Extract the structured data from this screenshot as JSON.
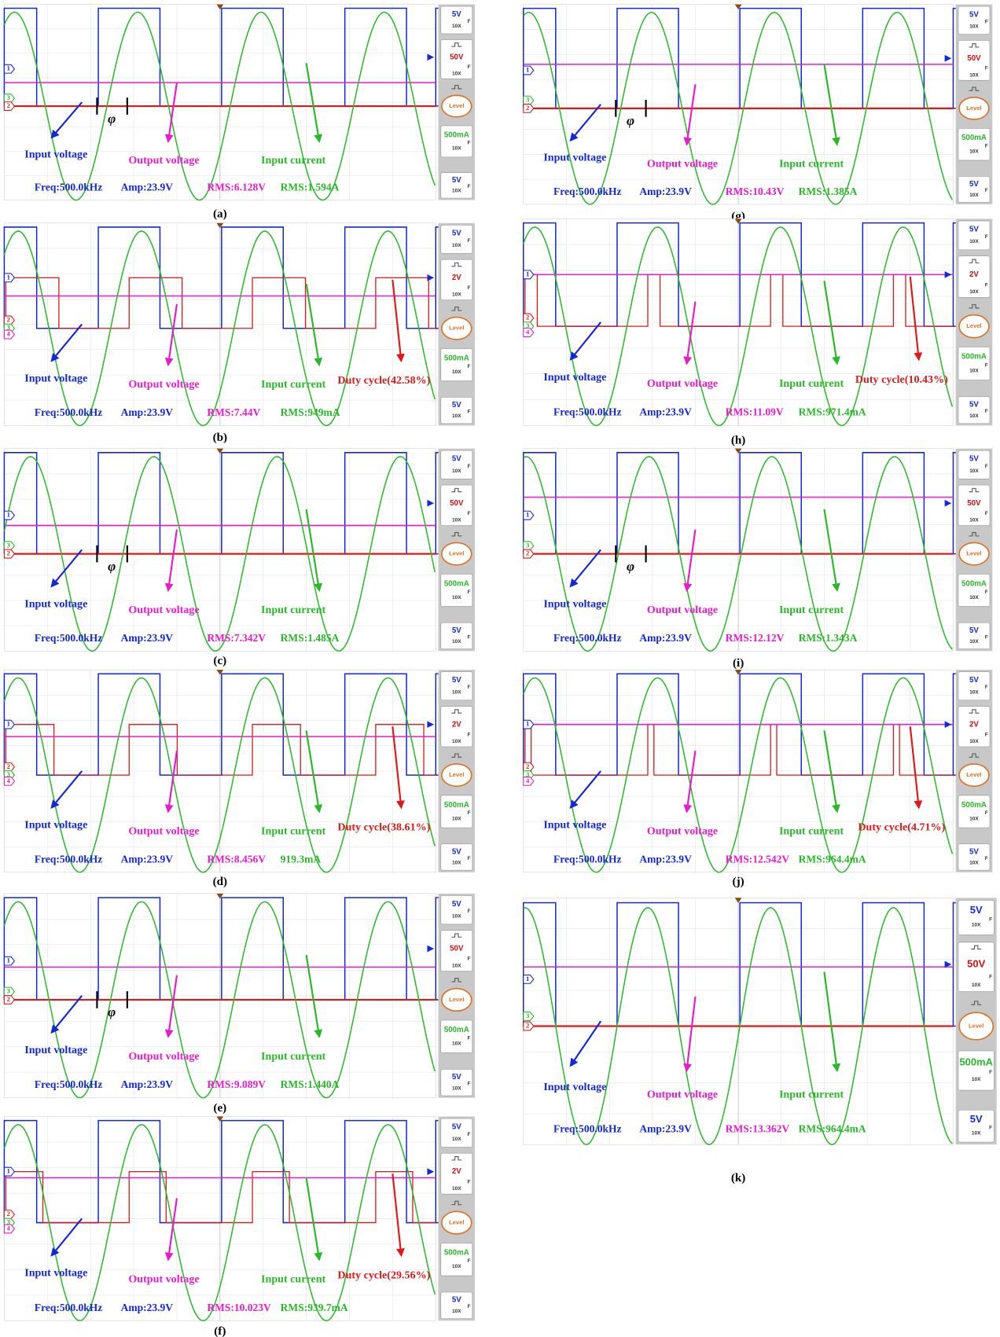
{
  "panels": [
    {
      "label": "(a)",
      "scales": [
        "5V",
        "50V",
        "500mA",
        "5V"
      ],
      "probe": "10X",
      "coupling": "F",
      "level": "Level",
      "markers": [
        "1",
        "3",
        "2"
      ],
      "phase": "φ",
      "annotations": [
        "Input voltage",
        "Output voltage",
        "Input current"
      ],
      "measurements": [
        "Freq:500.0kHz",
        "Amp:23.9V",
        "RMS:6.128V",
        "RMS:1.594A"
      ]
    },
    {
      "label": "(b)",
      "scales": [
        "5V",
        "2V",
        "500mA",
        "5V"
      ],
      "probe": "10X",
      "coupling": "F",
      "level": "Level",
      "markers": [
        "1",
        "2",
        "3",
        "4"
      ],
      "annotations": [
        "Input voltage",
        "Output voltage",
        "Input current",
        "Duty cycle(42.58%)"
      ],
      "measurements": [
        "Freq:500.0kHz",
        "Amp:23.9V",
        "RMS:7.44V",
        "RMS:949mA"
      ]
    },
    {
      "label": "(c)",
      "scales": [
        "5V",
        "50V",
        "500mA",
        "5V"
      ],
      "probe": "10X",
      "coupling": "F",
      "level": "Level",
      "markers": [
        "1",
        "3",
        "2"
      ],
      "phase": "φ",
      "annotations": [
        "Input voltage",
        "Output voltage",
        "Input current"
      ],
      "measurements": [
        "Freq:500.0kHz",
        "Amp:23.9V",
        "RMS:7.342V",
        "RMS:1.485A"
      ]
    },
    {
      "label": "(d)",
      "scales": [
        "5V",
        "2V",
        "500mA",
        "5V"
      ],
      "probe": "10X",
      "coupling": "F",
      "level": "Level",
      "markers": [
        "1",
        "2",
        "3",
        "4"
      ],
      "annotations": [
        "Input voltage",
        "Output voltage",
        "Input current",
        "Duty cycle(38.61%)"
      ],
      "measurements": [
        "Freq:500.0kHz",
        "Amp:23.9V",
        "RMS:8.456V",
        "919.3mA"
      ]
    },
    {
      "label": "(e)",
      "scales": [
        "5V",
        "50V",
        "500mA",
        "5V"
      ],
      "probe": "10X",
      "coupling": "F",
      "level": "Level",
      "markers": [
        "1",
        "3",
        "2"
      ],
      "phase": "φ",
      "annotations": [
        "Input voltage",
        "Output voltage",
        "Input current"
      ],
      "measurements": [
        "Freq:500.0kHz",
        "Amp:23.9V",
        "RMS:9.089V",
        "RMS:1.440A"
      ]
    },
    {
      "label": "(f)",
      "scales": [
        "5V",
        "2V",
        "500mA",
        "5V"
      ],
      "probe": "10X",
      "coupling": "F",
      "level": "Level",
      "markers": [
        "1",
        "2",
        "3",
        "4"
      ],
      "annotations": [
        "Input voltage",
        "Output voltage",
        "Input current",
        "Duty cycle(29.56%)"
      ],
      "measurements": [
        "Freq:500.0kHz",
        "Amp:23.9V",
        "RMS:10.023V",
        "RMS:939.7mA"
      ]
    },
    {
      "label": "(g)",
      "scales": [
        "5V",
        "50V",
        "500mA",
        "5V"
      ],
      "probe": "10X",
      "coupling": "F",
      "level": "Level",
      "markers": [
        "1",
        "3",
        "2"
      ],
      "phase": "φ",
      "annotations": [
        "Input voltage",
        "Output voltage",
        "Input current"
      ],
      "measurements": [
        "Freq:500.0kHz",
        "Amp:23.9V",
        "RMS:10.43V",
        "RMS:1.385A"
      ]
    },
    {
      "label": "(h)",
      "scales": [
        "5V",
        "2V",
        "500mA",
        "5V"
      ],
      "probe": "10X",
      "coupling": "F",
      "level": "Level",
      "markers": [
        "1",
        "2",
        "3",
        "4"
      ],
      "annotations": [
        "Input voltage",
        "Output voltage",
        "Input current",
        "Duty cycle(10.43%)"
      ],
      "measurements": [
        "Freq:500.0kHz",
        "Amp:23.9V",
        "RMS:11.09V",
        "RMS:971.4mA"
      ]
    },
    {
      "label": "(i)",
      "scales": [
        "5V",
        "50V",
        "500mA",
        "5V"
      ],
      "probe": "10X",
      "coupling": "F",
      "level": "Level",
      "markers": [
        "1",
        "3",
        "2"
      ],
      "phase": "φ",
      "annotations": [
        "Input voltage",
        "Output voltage",
        "Input current"
      ],
      "measurements": [
        "Freq:500.0kHz",
        "Amp:23.9V",
        "RMS:12.12V",
        "RMS:1.343A"
      ]
    },
    {
      "label": "(j)",
      "scales": [
        "5V",
        "2V",
        "500mA",
        "5V"
      ],
      "probe": "10X",
      "coupling": "F",
      "level": "Level",
      "markers": [
        "1",
        "2",
        "3",
        "4"
      ],
      "annotations": [
        "Input voltage",
        "Output voltage",
        "Input current",
        "Duty cycle(4.71%)"
      ],
      "measurements": [
        "Freq:500.0kHz",
        "Amp:23.9V",
        "RMS:12.542V",
        "RMS:964.4mA"
      ]
    },
    {
      "label": "(k)",
      "scales": [
        "5V",
        "50V",
        "500mA",
        "5V"
      ],
      "probe": "10X",
      "coupling": "F",
      "level": "Level",
      "markers": [
        "1",
        "3",
        "2"
      ],
      "annotations": [
        "Input voltage",
        "Output voltage",
        "Input current"
      ],
      "measurements": [
        "Freq:500.0kHz",
        "Amp:23.9V",
        "RMS:13.362V",
        "RMS:964.4mA"
      ]
    }
  ]
}
